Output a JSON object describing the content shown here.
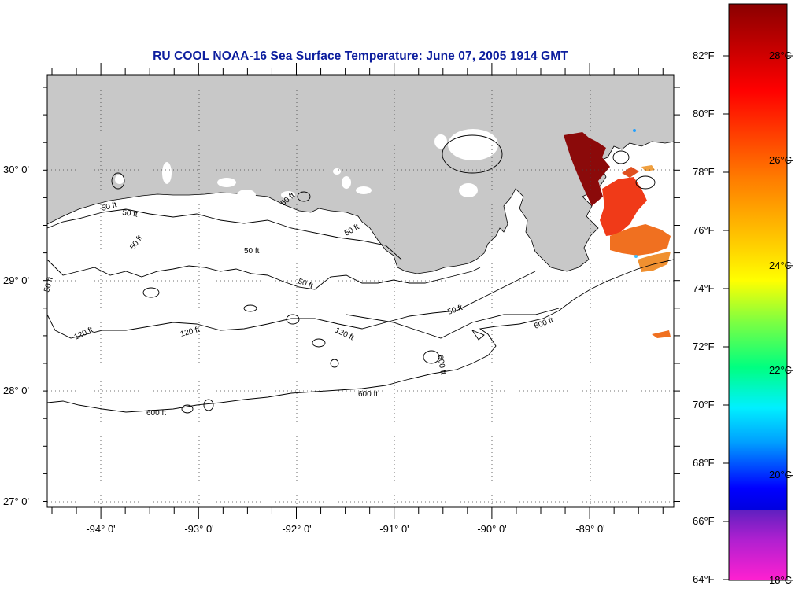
{
  "title": "RU COOL  NOAA-16  Sea Surface Temperature:  June 07, 2005 1914 GMT",
  "axes": {
    "latitude_labels": [
      "30° 0'",
      "29° 0'",
      "28° 0'",
      "27° 0'"
    ],
    "longitude_labels": [
      "-94° 0'",
      "-93° 0'",
      "-92° 0'",
      "-91° 0'",
      "-90° 0'",
      "-89° 0'"
    ]
  },
  "contours": {
    "labels": [
      "50 ft",
      "50 ft",
      "50 ft",
      "50 ft",
      "50 ft",
      "50 ft",
      "50 ft",
      "50 ft",
      "50 ft",
      "120 ft",
      "120 ft",
      "120 ft",
      "600 ft",
      "600 ft",
      "600 ft",
      "600 ft"
    ]
  },
  "colorbar": {
    "fahrenheit_labels": [
      "82°F",
      "80°F",
      "78°F",
      "76°F",
      "74°F",
      "72°F",
      "70°F",
      "68°F",
      "66°F",
      "64°F"
    ],
    "celsius_labels": [
      "28°C",
      "26°C",
      "24°C",
      "22°C",
      "20°C",
      "18°C"
    ]
  },
  "colors": {
    "title": "#0d1e9e",
    "land": "#c8c8c8",
    "sst_hot": "#8b0a0a",
    "sst_warm": "#f07020"
  }
}
